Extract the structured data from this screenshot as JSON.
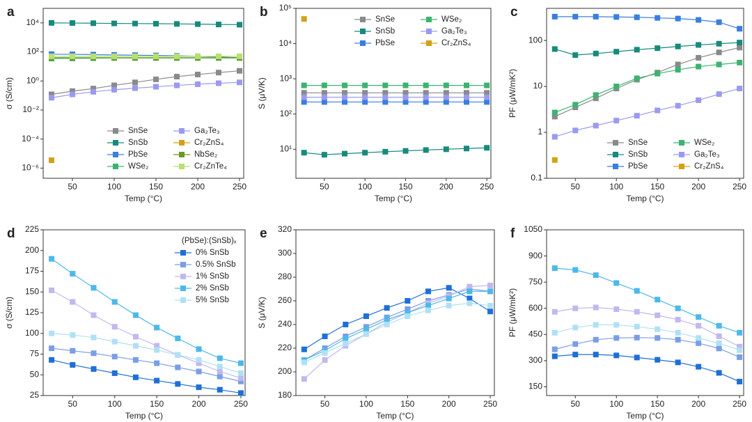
{
  "chart_data": [
    {
      "type": "line",
      "panel_label": "a",
      "xlabel": "Temp (°C)",
      "ylabel": "σ (S/cm)",
      "log_y": true,
      "xlim": [
        15,
        255
      ],
      "xticks": [
        50,
        100,
        150,
        200,
        250
      ],
      "ylim": [
        2e-07,
        100000
      ],
      "yticks": [
        {
          "value": 1e-06,
          "label": "10⁻⁶"
        },
        {
          "value": 0.0001,
          "label": "10⁻⁴"
        },
        {
          "value": 0.01,
          "label": "10⁻²"
        },
        {
          "value": 1,
          "label": "10⁰"
        },
        {
          "value": 100,
          "label": "10²"
        },
        {
          "value": 10000,
          "label": "10⁴"
        }
      ],
      "legend": "lower right",
      "legend_columns": 2,
      "x": [
        25,
        50,
        75,
        100,
        125,
        150,
        175,
        200,
        225,
        250
      ],
      "series": [
        {
          "name": "SnSe",
          "color": "#8a8a8a",
          "values": [
            0.12,
            0.2,
            0.3,
            0.5,
            0.8,
            1.3,
            2,
            2.8,
            3.8,
            5
          ]
        },
        {
          "name": "SnSb",
          "color": "#178a7c",
          "values": [
            10000,
            9800,
            9500,
            9200,
            9000,
            8800,
            8500,
            8200,
            7800,
            7500
          ]
        },
        {
          "name": "PbSe",
          "color": "#3a7ee0",
          "values": [
            70,
            68,
            65,
            62,
            60,
            57,
            54,
            50,
            45,
            40
          ]
        },
        {
          "name": "WSe₂",
          "color": "#3cb371",
          "values": [
            35,
            36,
            37,
            38,
            38,
            38,
            38,
            38,
            38,
            38
          ]
        },
        {
          "name": "Ga₂Te₃",
          "color": "#9a9af0",
          "values": [
            0.07,
            0.12,
            0.18,
            0.25,
            0.32,
            0.4,
            0.5,
            0.6,
            0.7,
            0.8
          ]
        },
        {
          "name": "Cr₂ZnS₄",
          "color": "#d4a017",
          "values": [
            3.5e-06,
            null,
            null,
            null,
            null,
            null,
            null,
            null,
            null,
            null
          ]
        },
        {
          "name": "NbSe₂",
          "color": "#6a9a1f",
          "values": [
            40,
            40,
            40,
            40,
            40,
            40,
            40,
            40,
            40,
            40
          ]
        },
        {
          "name": "Cr₂ZnTe₄",
          "color": "#b8e070",
          "values": [
            50,
            50,
            50,
            50,
            50,
            50,
            50,
            50,
            50,
            50
          ]
        }
      ]
    },
    {
      "type": "line",
      "panel_label": "b",
      "xlabel": "Temp (°C)",
      "ylabel": "S (μV/K)",
      "log_y": true,
      "xlim": [
        15,
        255
      ],
      "xticks": [
        50,
        100,
        150,
        200,
        250
      ],
      "ylim": [
        1.5,
        100000
      ],
      "yticks": [
        {
          "value": 10,
          "label": "10¹"
        },
        {
          "value": 100,
          "label": "10²"
        },
        {
          "value": 1000,
          "label": "10³"
        },
        {
          "value": 10000,
          "label": "10⁴"
        },
        {
          "value": 100000,
          "label": "10⁵"
        }
      ],
      "legend": "upper right",
      "legend_columns": 2,
      "x": [
        25,
        50,
        75,
        100,
        125,
        150,
        175,
        200,
        225,
        250
      ],
      "series": [
        {
          "name": "SnSe",
          "color": "#8a8a8a",
          "values": [
            400,
            400,
            400,
            400,
            400,
            400,
            400,
            400,
            400,
            400
          ]
        },
        {
          "name": "SnSb",
          "color": "#178a7c",
          "values": [
            8,
            7,
            7.5,
            8,
            8.5,
            9,
            9.5,
            10,
            10.5,
            11
          ]
        },
        {
          "name": "PbSe",
          "color": "#3a7ee0",
          "values": [
            220,
            220,
            220,
            220,
            220,
            220,
            220,
            220,
            220,
            220
          ]
        },
        {
          "name": "WSe₂",
          "color": "#3cb371",
          "values": [
            650,
            650,
            650,
            650,
            650,
            650,
            650,
            650,
            650,
            650
          ]
        },
        {
          "name": "Ga₂Te₃",
          "color": "#9a9af0",
          "values": [
            300,
            300,
            300,
            300,
            300,
            300,
            300,
            300,
            300,
            300
          ]
        },
        {
          "name": "Cr₂ZnS₄",
          "color": "#d4a017",
          "values": [
            50000,
            null,
            null,
            null,
            null,
            null,
            null,
            null,
            null,
            null
          ]
        }
      ]
    },
    {
      "type": "line",
      "panel_label": "c",
      "xlabel": "Temp (°C)",
      "ylabel": "PF (μW/mK²)",
      "log_y": true,
      "xlim": [
        15,
        255
      ],
      "xticks": [
        50,
        100,
        150,
        200,
        250
      ],
      "ylim": [
        0.1,
        500
      ],
      "yticks": [
        0.1,
        1,
        10,
        100
      ],
      "legend": "lower right",
      "legend_columns": 2,
      "x": [
        25,
        50,
        75,
        100,
        125,
        150,
        175,
        200,
        225,
        250
      ],
      "series": [
        {
          "name": "SnSe",
          "color": "#8a8a8a",
          "values": [
            2.2,
            3.5,
            5.5,
            9,
            14,
            20,
            30,
            42,
            55,
            70
          ]
        },
        {
          "name": "SnSb",
          "color": "#178a7c",
          "values": [
            65,
            48,
            52,
            57,
            63,
            68,
            74,
            80,
            85,
            90
          ]
        },
        {
          "name": "PbSe",
          "color": "#3a7ee0",
          "values": [
            330,
            330,
            330,
            325,
            320,
            310,
            300,
            280,
            250,
            180
          ]
        },
        {
          "name": "WSe₂",
          "color": "#3cb371",
          "values": [
            2.7,
            4,
            6.5,
            10,
            15,
            19,
            23,
            27,
            30,
            33
          ]
        },
        {
          "name": "Ga₂Te₃",
          "color": "#9a9af0",
          "values": [
            0.8,
            1.1,
            1.4,
            1.8,
            2.3,
            3,
            3.8,
            5,
            6.8,
            9
          ]
        },
        {
          "name": "Cr₂ZnS₄",
          "color": "#d4a017",
          "values": [
            0.25,
            null,
            null,
            null,
            null,
            null,
            null,
            null,
            null,
            null
          ]
        }
      ]
    },
    {
      "type": "line",
      "panel_label": "d",
      "xlabel": "Temp (°C)",
      "ylabel": "σ (S/cm)",
      "log_y": false,
      "xlim": [
        15,
        255
      ],
      "xticks": [
        50,
        100,
        150,
        200,
        250
      ],
      "ylim": [
        25,
        225
      ],
      "yticks": [
        25,
        50,
        75,
        100,
        125,
        150,
        175,
        200,
        225
      ],
      "legend": "upper right",
      "legend_columns": 1,
      "legend_title": "(PbSe):(SnSb)ₓ",
      "x": [
        25,
        50,
        75,
        100,
        125,
        150,
        175,
        200,
        225,
        250
      ],
      "series": [
        {
          "name": "0% SnSb",
          "color": "#1f6fd6",
          "values": [
            68,
            62,
            57,
            52,
            47,
            43,
            39,
            35,
            32,
            28
          ]
        },
        {
          "name": "0.5% SnSb",
          "color": "#7a9ee6",
          "values": [
            82,
            79,
            76,
            72,
            68,
            64,
            59,
            54,
            48,
            42
          ]
        },
        {
          "name": "1% SnSb",
          "color": "#c2b8ee",
          "values": [
            152,
            138,
            122,
            108,
            96,
            85,
            74,
            64,
            54,
            46
          ]
        },
        {
          "name": "2% SnSb",
          "color": "#4db8ea",
          "values": [
            190,
            172,
            155,
            138,
            122,
            107,
            94,
            81,
            70,
            64
          ]
        },
        {
          "name": "5% SnSb",
          "color": "#b0e0f5",
          "values": [
            100,
            98,
            95,
            90,
            85,
            80,
            74,
            68,
            60,
            52
          ]
        }
      ]
    },
    {
      "type": "line",
      "panel_label": "e",
      "xlabel": "Temp (°C)",
      "ylabel": "S (μV/K)",
      "log_y": false,
      "xlim": [
        15,
        255
      ],
      "xticks": [
        50,
        100,
        150,
        200,
        250
      ],
      "ylim": [
        180,
        320
      ],
      "yticks": [
        180,
        200,
        220,
        240,
        260,
        280,
        300,
        320
      ],
      "x": [
        25,
        50,
        75,
        100,
        125,
        150,
        175,
        200,
        225,
        250
      ],
      "series": [
        {
          "color": "#1f6fd6",
          "values": [
            219,
            230,
            240,
            247,
            254,
            260,
            268,
            271,
            262,
            251
          ]
        },
        {
          "color": "#7a9ee6",
          "values": [
            210,
            220,
            230,
            238,
            246,
            253,
            260,
            265,
            270,
            268
          ]
        },
        {
          "color": "#c2b8ee",
          "values": [
            194,
            210,
            222,
            232,
            242,
            250,
            258,
            264,
            272,
            273
          ]
        },
        {
          "color": "#4db8ea",
          "values": [
            210,
            218,
            228,
            236,
            244,
            250,
            256,
            262,
            268,
            268
          ]
        },
        {
          "color": "#b0e0f5",
          "values": [
            208,
            216,
            224,
            232,
            240,
            247,
            252,
            256,
            258,
            256
          ]
        }
      ]
    },
    {
      "type": "line",
      "panel_label": "f",
      "xlabel": "Temp (°C)",
      "ylabel": "PF (μW/mK²)",
      "log_y": false,
      "xlim": [
        15,
        255
      ],
      "xticks": [
        50,
        100,
        150,
        200,
        250
      ],
      "ylim": [
        100,
        1050
      ],
      "yticks": [
        150,
        300,
        450,
        600,
        750,
        900,
        1050
      ],
      "x": [
        25,
        50,
        75,
        100,
        125,
        150,
        175,
        200,
        225,
        250
      ],
      "series": [
        {
          "color": "#1f6fd6",
          "values": [
            325,
            335,
            335,
            330,
            318,
            305,
            290,
            265,
            230,
            180
          ]
        },
        {
          "color": "#7a9ee6",
          "values": [
            365,
            395,
            420,
            430,
            432,
            430,
            420,
            400,
            370,
            320
          ]
        },
        {
          "color": "#c2b8ee",
          "values": [
            580,
            600,
            605,
            595,
            580,
            560,
            535,
            500,
            440,
            380
          ]
        },
        {
          "color": "#4db8ea",
          "values": [
            830,
            820,
            790,
            745,
            700,
            650,
            600,
            550,
            500,
            460
          ]
        },
        {
          "color": "#b0e0f5",
          "values": [
            460,
            490,
            505,
            505,
            495,
            480,
            460,
            430,
            400,
            360
          ]
        }
      ]
    }
  ]
}
